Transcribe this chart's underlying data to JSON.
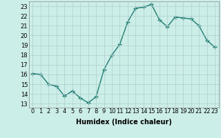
{
  "x": [
    0,
    1,
    2,
    3,
    4,
    5,
    6,
    7,
    8,
    9,
    10,
    11,
    12,
    13,
    14,
    15,
    16,
    17,
    18,
    19,
    20,
    21,
    22,
    23
  ],
  "y": [
    16.1,
    16.0,
    15.0,
    14.8,
    13.8,
    14.3,
    13.6,
    13.1,
    13.7,
    16.5,
    18.0,
    19.1,
    21.4,
    22.8,
    22.9,
    23.2,
    21.6,
    20.9,
    21.9,
    21.8,
    21.7,
    21.0,
    19.5,
    18.8
  ],
  "line_color": "#1a7a6e",
  "marker": "+",
  "markersize": 4,
  "linewidth": 1.0,
  "xlabel": "Humidex (Indice chaleur)",
  "bg_color": "#cceee8",
  "grid_color": "#b0cccc",
  "yticks": [
    13,
    14,
    15,
    16,
    17,
    18,
    19,
    20,
    21,
    22,
    23
  ],
  "xticks": [
    0,
    1,
    2,
    3,
    4,
    5,
    6,
    7,
    8,
    9,
    10,
    11,
    12,
    13,
    14,
    15,
    16,
    17,
    18,
    19,
    20,
    21,
    22,
    23
  ],
  "ylim": [
    12.6,
    23.5
  ],
  "xlim": [
    -0.5,
    23.5
  ],
  "tick_fontsize": 6,
  "xlabel_fontsize": 7
}
